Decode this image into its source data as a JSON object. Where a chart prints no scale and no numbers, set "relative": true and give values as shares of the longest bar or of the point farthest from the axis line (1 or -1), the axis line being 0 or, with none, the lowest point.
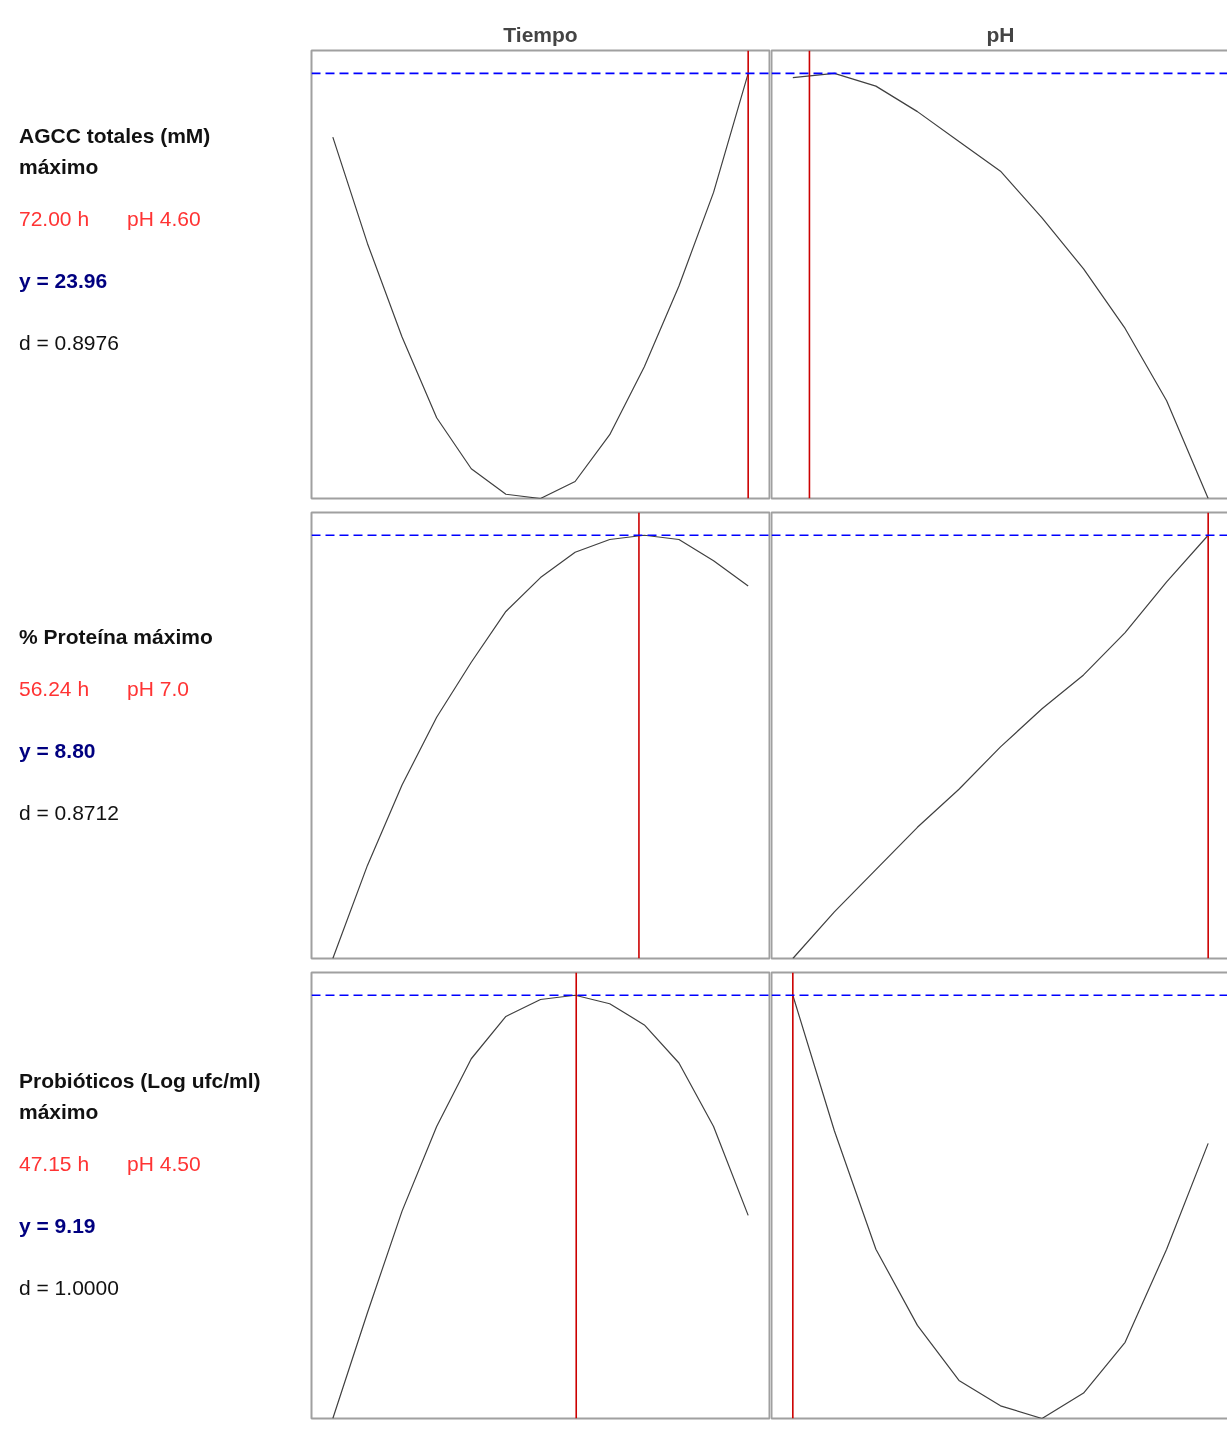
{
  "chart_data": [
    {
      "type": "line",
      "title": "Tiempo",
      "ylabel": "AGCC totales (mM)\nmáximo",
      "annotations": [
        "72.00 h",
        "pH 4.60",
        "y = 23.96",
        "d = 0.8976"
      ],
      "relative": true,
      "tick_labels": false,
      "grid": false,
      "categories": [
        null,
        null,
        null,
        null,
        null,
        null,
        null,
        null,
        null,
        null,
        null,
        null,
        null
      ],
      "series": [
        {
          "color": "#404040",
          "values": [
            0.85,
            0.6,
            0.38,
            0.19,
            0.07,
            0.01,
            0,
            0.04,
            0.15,
            0.31,
            0.5,
            0.72,
            1.0
          ]
        }
      ],
      "ref_lines": [
        {
          "axis": "y",
          "value": 1.0,
          "color": "#0000ff",
          "line_style": "dashed"
        }
      ]
    },
    {
      "type": "line",
      "title": "pH",
      "relative": true,
      "tick_labels": false,
      "grid": false,
      "categories": [
        null,
        null,
        null,
        null,
        null,
        null,
        null,
        null,
        null,
        null,
        null
      ],
      "series": [
        {
          "color": "#404040",
          "values": [
            0.99,
            1.0,
            0.97,
            0.91,
            0.84,
            0.77,
            0.66,
            0.54,
            0.4,
            0.23,
            0
          ]
        }
      ],
      "ref_lines": [
        {
          "axis": "y",
          "value": 1.0,
          "color": "#0000ff",
          "line_style": "dashed"
        }
      ]
    },
    {
      "type": "line",
      "ylabel": "% Proteína máximo",
      "annotations": [
        "56.24 h",
        "pH 7.0",
        "y = 8.80",
        "d = 0.8712"
      ],
      "relative": true,
      "tick_labels": false,
      "grid": false,
      "categories": [
        null,
        null,
        null,
        null,
        null,
        null,
        null,
        null,
        null,
        null,
        null,
        null,
        null
      ],
      "series": [
        {
          "color": "#404040",
          "values": [
            0,
            0.22,
            0.41,
            0.57,
            0.7,
            0.82,
            0.9,
            0.96,
            0.99,
            1.0,
            0.99,
            0.94,
            0.88
          ]
        }
      ],
      "ref_lines": [
        {
          "axis": "y",
          "value": 1.0,
          "color": "#0000ff",
          "line_style": "dashed"
        }
      ]
    },
    {
      "type": "line",
      "relative": true,
      "tick_labels": false,
      "grid": false,
      "categories": [
        null,
        null,
        null,
        null,
        null,
        null,
        null,
        null,
        null,
        null,
        null
      ],
      "series": [
        {
          "color": "#404040",
          "values": [
            0,
            0.11,
            0.21,
            0.31,
            0.4,
            0.5,
            0.59,
            0.67,
            0.77,
            0.89,
            1.0
          ]
        }
      ],
      "ref_lines": [
        {
          "axis": "y",
          "value": 1.0,
          "color": "#0000ff",
          "line_style": "dashed"
        }
      ]
    },
    {
      "type": "line",
      "ylabel": "Probióticos (Log ufc/ml)\nmáximo",
      "annotations": [
        "47.15 h",
        "pH 4.50",
        "y = 9.19",
        "d = 1.0000"
      ],
      "relative": true,
      "tick_labels": false,
      "grid": false,
      "categories": [
        null,
        null,
        null,
        null,
        null,
        null,
        null,
        null,
        null,
        null,
        null,
        null,
        null
      ],
      "series": [
        {
          "color": "#404040",
          "values": [
            0,
            0.25,
            0.49,
            0.69,
            0.85,
            0.95,
            0.99,
            1.0,
            0.98,
            0.93,
            0.84,
            0.69,
            0.48
          ]
        }
      ],
      "ref_lines": [
        {
          "axis": "y",
          "value": 1.0,
          "color": "#0000ff",
          "line_style": "dashed"
        }
      ]
    },
    {
      "type": "line",
      "relative": true,
      "tick_labels": false,
      "grid": false,
      "categories": [
        null,
        null,
        null,
        null,
        null,
        null,
        null,
        null,
        null,
        null,
        null
      ],
      "series": [
        {
          "color": "#404040",
          "values": [
            1.0,
            0.68,
            0.4,
            0.22,
            0.09,
            0.03,
            0,
            0.06,
            0.18,
            0.4,
            0.65
          ]
        }
      ],
      "ref_lines": [
        {
          "axis": "y",
          "value": 1.0,
          "color": "#0000ff",
          "line_style": "dashed"
        }
      ]
    }
  ]
}
